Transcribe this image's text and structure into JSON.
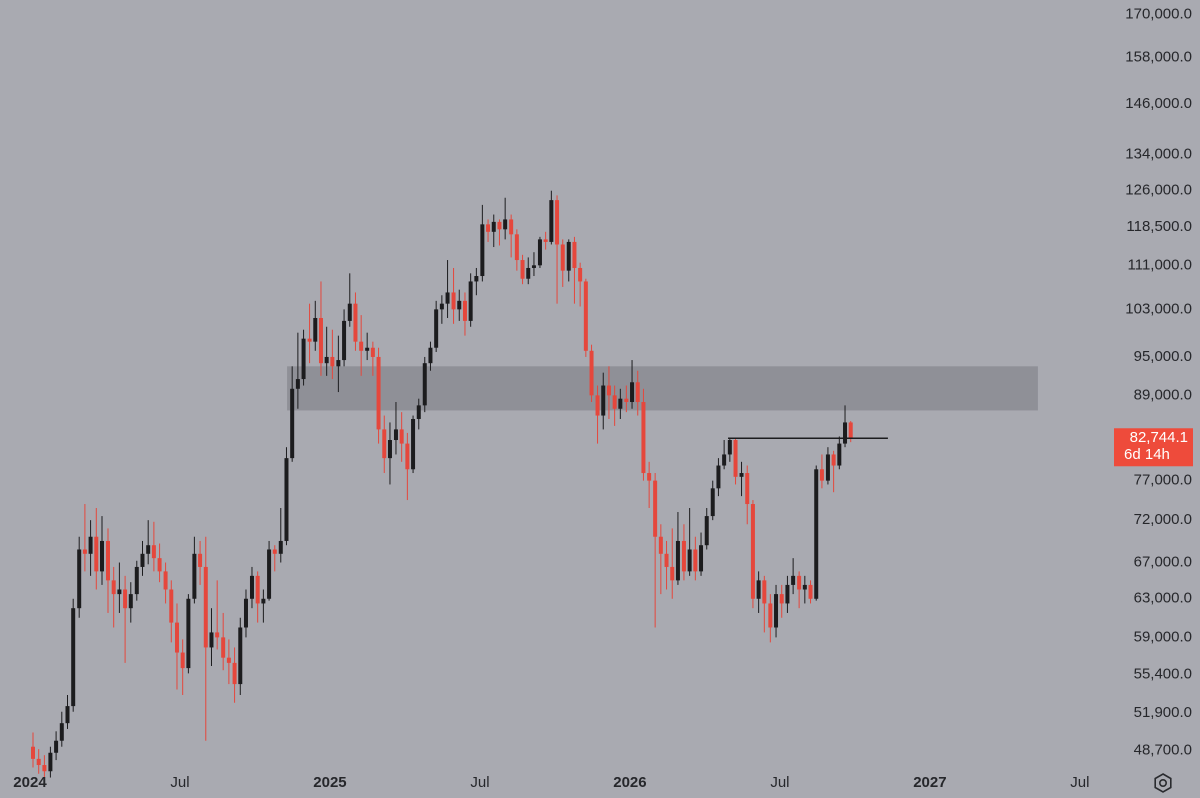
{
  "chart_data": {
    "type": "candlestick",
    "log_scale": true,
    "up_color": "#1c1c1e",
    "down_color": "#e5473c",
    "zone_color": "#8f9097",
    "xlim": [
      2023.9,
      2027.567
    ],
    "ylim": [
      47100,
      174200
    ],
    "xticks": [
      2024,
      {
        "value": 2024.5,
        "label": "Jul"
      },
      2025,
      {
        "value": 2025.5,
        "label": "Jul"
      },
      2026,
      {
        "value": 2026.5,
        "label": "Jul"
      },
      2027,
      {
        "value": 2027.5,
        "label": "Jul"
      }
    ],
    "yticks": [
      {
        "value": 170000,
        "label": "170,000.0"
      },
      {
        "value": 158000,
        "label": "158,000.0"
      },
      {
        "value": 146000,
        "label": "146,000.0"
      },
      {
        "value": 134000,
        "label": "134,000.0"
      },
      {
        "value": 126000,
        "label": "126,000.0"
      },
      {
        "value": 118500,
        "label": "118,500.0"
      },
      {
        "value": 111000,
        "label": "111,000.0"
      },
      {
        "value": 103000,
        "label": "103,000.0"
      },
      {
        "value": 95000,
        "label": "95,000.0"
      },
      {
        "value": 89000,
        "label": "89,000.0"
      },
      {
        "value": 77000,
        "label": "77,000.0"
      },
      {
        "value": 72000,
        "label": "72,000.0"
      },
      {
        "value": 67000,
        "label": "67,000.0"
      },
      {
        "value": 63000,
        "label": "63,000.0"
      },
      {
        "value": 59000,
        "label": "59,000.0"
      },
      {
        "value": 55400,
        "label": "55,400.0"
      },
      {
        "value": 51900,
        "label": "51,900.0"
      },
      {
        "value": 48700,
        "label": "48,700.0"
      }
    ],
    "zone": {
      "ymin": 86750,
      "ymax": 93500,
      "xmin": 2024.857,
      "xmax": 2027.36
    },
    "level": {
      "value": 82744.1,
      "xmin": 2026.327,
      "xmax": 2026.86
    },
    "last_price": {
      "value": 82744.1,
      "label": "82,744.1",
      "countdown": "6d 14h",
      "color": "#ee4b3b"
    },
    "x": [
      2024.01,
      2024.029,
      2024.048,
      2024.068,
      2024.087,
      2024.106,
      2024.125,
      2024.144,
      2024.164,
      2024.183,
      2024.202,
      2024.221,
      2024.24,
      2024.26,
      2024.279,
      2024.298,
      2024.317,
      2024.336,
      2024.356,
      2024.375,
      2024.394,
      2024.413,
      2024.432,
      2024.452,
      2024.471,
      2024.49,
      2024.509,
      2024.528,
      2024.548,
      2024.567,
      2024.586,
      2024.605,
      2024.624,
      2024.644,
      2024.663,
      2024.682,
      2024.701,
      2024.72,
      2024.74,
      2024.759,
      2024.778,
      2024.797,
      2024.816,
      2024.836,
      2024.855,
      2024.874,
      2024.893,
      2024.912,
      2024.932,
      2024.951,
      2024.97,
      2024.989,
      2025.008,
      2025.028,
      2025.047,
      2025.066,
      2025.085,
      2025.104,
      2025.124,
      2025.143,
      2025.162,
      2025.181,
      2025.2,
      2025.22,
      2025.239,
      2025.258,
      2025.277,
      2025.296,
      2025.316,
      2025.335,
      2025.354,
      2025.373,
      2025.392,
      2025.412,
      2025.431,
      2025.45,
      2025.469,
      2025.488,
      2025.508,
      2025.527,
      2025.546,
      2025.565,
      2025.584,
      2025.604,
      2025.623,
      2025.642,
      2025.661,
      2025.68,
      2025.7,
      2025.719,
      2025.738,
      2025.757,
      2025.776,
      2025.796,
      2025.815,
      2025.834,
      2025.853,
      2025.872,
      2025.892,
      2025.911,
      2025.93,
      2025.949,
      2025.968,
      2025.988,
      2026.007,
      2026.026,
      2026.045,
      2026.064,
      2026.084,
      2026.103,
      2026.122,
      2026.141,
      2026.16,
      2026.18,
      2026.199,
      2026.218,
      2026.237,
      2026.256,
      2026.276,
      2026.295,
      2026.314,
      2026.333,
      2026.352,
      2026.372,
      2026.391,
      2026.41,
      2026.429,
      2026.448,
      2026.468,
      2026.487,
      2026.506,
      2026.525,
      2026.544,
      2026.564,
      2026.583,
      2026.602,
      2026.621,
      2026.64,
      2026.66,
      2026.679,
      2026.698,
      2026.717,
      2026.736
    ],
    "open": [
      49000,
      48000,
      47500,
      47000,
      48500,
      49500,
      51000,
      52500,
      62000,
      68500,
      68000,
      70000,
      66000,
      69500,
      65000,
      63500,
      64000,
      62000,
      63500,
      66500,
      68000,
      69000,
      67500,
      66000,
      64000,
      60500,
      57500,
      56000,
      63000,
      68000,
      66500,
      58000,
      59500,
      59000,
      57000,
      56500,
      54500,
      60000,
      63000,
      65500,
      62500,
      63000,
      68500,
      68000,
      69500,
      80000,
      90000,
      91500,
      98000,
      97500,
      101500,
      94000,
      95000,
      93500,
      94500,
      101000,
      104000,
      97500,
      96000,
      96500,
      95000,
      84000,
      80000,
      82500,
      84000,
      82000,
      78500,
      85500,
      87500,
      94000,
      96500,
      103000,
      104000,
      106000,
      103000,
      104500,
      101000,
      108000,
      109000,
      119000,
      117500,
      119500,
      118000,
      120000,
      117000,
      112000,
      108500,
      110500,
      111000,
      116000,
      115500,
      124000,
      115000,
      110000,
      115500,
      110500,
      108000,
      96000,
      89000,
      86000,
      90500,
      89000,
      87000,
      88500,
      88000,
      91000,
      88000,
      78000,
      77000,
      70000,
      68000,
      66500,
      65000,
      69500,
      66000,
      68500,
      66000,
      69000,
      72500,
      76000,
      79000,
      80500,
      82500,
      77500,
      78000,
      74000,
      63000,
      65000,
      62500,
      60000,
      63500,
      62500,
      64500,
      65500,
      64000,
      64500,
      63000,
      78500,
      77000,
      80500,
      79000,
      82000,
      85000
    ],
    "high": [
      50200,
      48800,
      48300,
      49000,
      50300,
      52000,
      53500,
      63000,
      70000,
      74000,
      72000,
      73500,
      72500,
      71000,
      66500,
      67000,
      65500,
      64800,
      67200,
      69500,
      72000,
      71800,
      69200,
      67000,
      65000,
      62500,
      58800,
      63500,
      70000,
      69500,
      70000,
      62000,
      65000,
      61500,
      58800,
      58000,
      61000,
      64000,
      66500,
      66000,
      64000,
      69500,
      69000,
      73500,
      81500,
      93500,
      99000,
      99500,
      104000,
      104500,
      108000,
      100000,
      99500,
      98500,
      103000,
      109500,
      106000,
      102000,
      99000,
      97500,
      96500,
      86000,
      85000,
      88000,
      86500,
      83500,
      86000,
      88500,
      95000,
      97500,
      104500,
      105500,
      112000,
      110500,
      106500,
      106000,
      109500,
      110500,
      123000,
      120000,
      121000,
      120000,
      124500,
      121000,
      118000,
      113000,
      112500,
      113500,
      116500,
      117500,
      126000,
      125000,
      116000,
      116000,
      116500,
      111500,
      108500,
      97000,
      90500,
      92500,
      93500,
      90500,
      90000,
      90500,
      94500,
      92800,
      90000,
      79500,
      78000,
      71500,
      69500,
      71000,
      73000,
      71500,
      73500,
      70000,
      70500,
      73500,
      77000,
      80000,
      82500,
      82800,
      82800,
      79500,
      79000,
      74500,
      66000,
      65500,
      63500,
      64500,
      64500,
      65500,
      67500,
      66000,
      65500,
      65000,
      79000,
      80500,
      81500,
      81000,
      83000,
      87500,
      85200
    ],
    "low": [
      47300,
      46800,
      46200,
      46500,
      47900,
      49000,
      50500,
      52000,
      61000,
      66000,
      65500,
      64000,
      64500,
      61500,
      60000,
      61500,
      56500,
      60500,
      62800,
      65500,
      66800,
      66000,
      64800,
      62500,
      58500,
      54000,
      53500,
      55500,
      62500,
      64500,
      49500,
      56200,
      57800,
      55800,
      54500,
      52800,
      53500,
      59000,
      62000,
      60500,
      60500,
      62800,
      66000,
      67000,
      69000,
      79500,
      87000,
      90500,
      94000,
      96000,
      92000,
      92000,
      91500,
      89500,
      93500,
      100000,
      96000,
      92000,
      94500,
      92000,
      82000,
      78000,
      76500,
      80500,
      79500,
      74500,
      78000,
      84000,
      86500,
      92800,
      95800,
      100500,
      101500,
      100500,
      101000,
      98500,
      100000,
      105500,
      108000,
      115500,
      114500,
      114800,
      116000,
      112500,
      110000,
      107500,
      107500,
      109000,
      110500,
      114000,
      115000,
      104000,
      107000,
      108000,
      104000,
      103500,
      95000,
      88000,
      82000,
      84000,
      85500,
      84500,
      85500,
      86500,
      87000,
      86000,
      77000,
      73500,
      60000,
      63500,
      64000,
      63000,
      64500,
      65000,
      65500,
      65000,
      65500,
      68500,
      72000,
      75000,
      78500,
      79500,
      76500,
      75000,
      71500,
      62000,
      61500,
      59500,
      58500,
      59000,
      61000,
      61500,
      63500,
      62000,
      62500,
      62500,
      62800,
      76000,
      76500,
      75500,
      78500,
      81500,
      82200
    ],
    "close": [
      48000,
      47500,
      47000,
      48500,
      49500,
      51000,
      52500,
      62000,
      68500,
      68000,
      70000,
      66000,
      69500,
      65000,
      63500,
      64000,
      62000,
      63500,
      66500,
      68000,
      69000,
      67500,
      66000,
      64000,
      60500,
      57500,
      56000,
      63000,
      68000,
      66500,
      58000,
      59500,
      59000,
      57000,
      56500,
      54500,
      60000,
      63000,
      65500,
      62500,
      63000,
      68500,
      68000,
      69500,
      80000,
      90000,
      91500,
      98000,
      97500,
      101500,
      94000,
      95000,
      93500,
      94500,
      101000,
      104000,
      97500,
      96000,
      96500,
      95000,
      84000,
      80000,
      82500,
      84000,
      82000,
      78500,
      85500,
      87500,
      94000,
      96500,
      103000,
      104000,
      106000,
      103000,
      104500,
      101000,
      108000,
      109000,
      119000,
      117500,
      119500,
      118000,
      120000,
      117000,
      112000,
      108500,
      110500,
      111000,
      116000,
      115500,
      124000,
      115000,
      110000,
      115500,
      110500,
      108000,
      96000,
      89000,
      86000,
      90500,
      89000,
      87000,
      88500,
      88000,
      91000,
      88000,
      78000,
      77000,
      70000,
      68000,
      66500,
      65000,
      69500,
      66000,
      68500,
      66000,
      69000,
      72500,
      76000,
      79000,
      80500,
      82500,
      77500,
      78000,
      74000,
      63000,
      65000,
      62500,
      60000,
      63500,
      62500,
      64500,
      65500,
      64000,
      64500,
      63000,
      78500,
      77000,
      80500,
      79000,
      82000,
      85000,
      82744.1
    ]
  }
}
